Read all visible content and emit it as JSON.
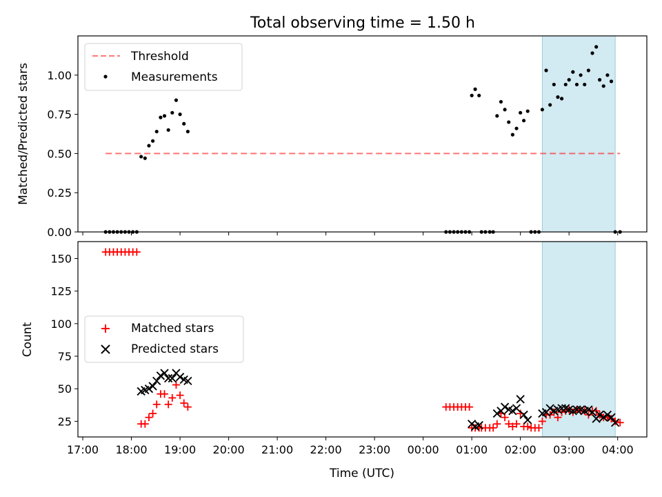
{
  "figure": {
    "title": "Total observing time = 1.50 h",
    "xlabel": "Time (UTC)",
    "x_ticks": [
      "17:00",
      "18:00",
      "19:00",
      "20:00",
      "21:00",
      "22:00",
      "23:00",
      "00:00",
      "01:00",
      "02:00",
      "03:00",
      "04:00"
    ],
    "x_tick_hours": [
      0,
      1,
      2,
      3,
      4,
      5,
      6,
      7,
      8,
      9,
      10,
      11
    ],
    "x_axis_origin": "17:00",
    "xlim_hours": [
      -0.1,
      11.6
    ],
    "highlight_span_hours": [
      9.45,
      10.95
    ],
    "highlight_color": "#add8e6"
  },
  "chart_data": [
    {
      "type": "scatter",
      "panel": "top",
      "ylabel": "Matched/Predicted stars",
      "ylim": [
        0,
        1.25
      ],
      "y_ticks": [
        "0.00",
        "0.25",
        "0.50",
        "0.75",
        "1.00"
      ],
      "y_tick_values": [
        0,
        0.25,
        0.5,
        0.75,
        1.0
      ],
      "legend_position": "upper-left",
      "threshold": {
        "name": "Threshold",
        "value": 0.5,
        "x_range": [
          0.47,
          11.05
        ],
        "color": "#ff0000",
        "style": "dashed"
      },
      "measurements": {
        "name": "Measurements",
        "color": "#000000",
        "x": [
          0.47,
          0.55,
          0.63,
          0.71,
          0.79,
          0.87,
          0.95,
          1.03,
          1.11,
          1.2,
          1.28,
          1.36,
          1.44,
          1.52,
          1.6,
          1.68,
          1.76,
          1.84,
          1.92,
          2.0,
          2.08,
          2.16,
          7.47,
          7.55,
          7.63,
          7.71,
          7.79,
          7.87,
          7.95,
          8.0,
          8.07,
          8.15,
          8.2,
          8.28,
          8.37,
          8.44,
          8.52,
          8.6,
          8.68,
          8.76,
          8.84,
          8.92,
          9.0,
          9.07,
          9.15,
          9.22,
          9.3,
          9.38,
          9.45,
          9.53,
          9.61,
          9.69,
          9.77,
          9.85,
          9.93,
          10.0,
          10.08,
          10.16,
          10.24,
          10.32,
          10.4,
          10.48,
          10.56,
          10.63,
          10.71,
          10.79,
          10.87,
          10.95,
          11.05
        ],
        "y": [
          0,
          0,
          0,
          0,
          0,
          0,
          0,
          0,
          0,
          0.48,
          0.47,
          0.55,
          0.58,
          0.64,
          0.73,
          0.74,
          0.65,
          0.76,
          0.84,
          0.75,
          0.69,
          0.64,
          0,
          0,
          0,
          0,
          0,
          0,
          0,
          0.87,
          0.91,
          0.87,
          0,
          0,
          0,
          0,
          0.74,
          0.83,
          0.78,
          0.7,
          0.62,
          0.66,
          0.76,
          0.71,
          0.77,
          0,
          0,
          0,
          0.78,
          1.03,
          0.81,
          0.94,
          0.86,
          0.85,
          0.94,
          0.97,
          1.02,
          0.94,
          1.0,
          0.94,
          1.03,
          1.14,
          1.18,
          0.97,
          0.93,
          1.0,
          0.96,
          0,
          0
        ]
      }
    },
    {
      "type": "scatter",
      "panel": "bottom",
      "ylabel": "Count",
      "ylim": [
        13,
        163
      ],
      "y_ticks": [
        "25",
        "50",
        "75",
        "100",
        "125",
        "150"
      ],
      "y_tick_values": [
        25,
        50,
        75,
        100,
        125,
        150
      ],
      "legend_position": "center-left",
      "series": [
        {
          "name": "Matched stars",
          "marker": "plus",
          "color": "#ff0000",
          "x": [
            0.47,
            0.55,
            0.63,
            0.71,
            0.79,
            0.87,
            0.95,
            1.03,
            1.11,
            1.2,
            1.28,
            1.36,
            1.44,
            1.52,
            1.6,
            1.68,
            1.76,
            1.84,
            1.92,
            2.0,
            2.08,
            2.16,
            7.47,
            7.55,
            7.63,
            7.71,
            7.79,
            7.87,
            7.95,
            8.0,
            8.07,
            8.15,
            8.2,
            8.28,
            8.37,
            8.44,
            8.52,
            8.6,
            8.68,
            8.76,
            8.84,
            8.92,
            9.0,
            9.07,
            9.15,
            9.22,
            9.3,
            9.38,
            9.45,
            9.53,
            9.61,
            9.69,
            9.77,
            9.85,
            9.93,
            10.0,
            10.08,
            10.16,
            10.24,
            10.32,
            10.4,
            10.48,
            10.56,
            10.63,
            10.71,
            10.79,
            10.87,
            10.95,
            11.05
          ],
          "y": [
            155,
            155,
            155,
            155,
            155,
            155,
            155,
            155,
            155,
            23,
            23,
            28,
            31,
            38,
            46,
            46,
            38,
            43,
            53,
            45,
            39,
            36,
            36,
            36,
            36,
            36,
            36,
            36,
            36,
            20,
            20,
            20,
            20,
            20,
            20,
            20,
            23,
            31,
            28,
            23,
            21,
            23,
            31,
            21,
            21,
            20,
            20,
            20,
            25,
            30,
            30,
            32,
            28,
            32,
            33,
            34,
            32,
            34,
            33,
            33,
            30,
            33,
            33,
            30,
            28,
            28,
            27,
            25,
            24
          ]
        },
        {
          "name": "Predicted stars",
          "marker": "cross",
          "color": "#000000",
          "x": [
            1.2,
            1.28,
            1.36,
            1.44,
            1.52,
            1.6,
            1.68,
            1.76,
            1.84,
            1.92,
            2.0,
            2.08,
            2.16,
            8.0,
            8.07,
            8.15,
            8.52,
            8.6,
            8.68,
            8.76,
            8.84,
            8.92,
            9.0,
            9.07,
            9.15,
            9.45,
            9.53,
            9.61,
            9.69,
            9.77,
            9.85,
            9.93,
            10.0,
            10.08,
            10.16,
            10.24,
            10.32,
            10.4,
            10.48,
            10.56,
            10.63,
            10.71,
            10.79,
            10.87,
            10.95
          ],
          "y": [
            48,
            49,
            50,
            52,
            56,
            60,
            62,
            58,
            58,
            62,
            59,
            57,
            56,
            23,
            21,
            22,
            31,
            33,
            36,
            34,
            33,
            35,
            42,
            30,
            26,
            31,
            32,
            35,
            33,
            34,
            35,
            35,
            34,
            33,
            34,
            34,
            33,
            34,
            32,
            27,
            30,
            28,
            30,
            28,
            24
          ]
        }
      ]
    }
  ]
}
